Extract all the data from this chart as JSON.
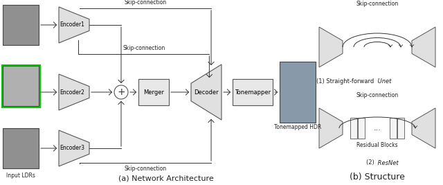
{
  "bg_color": "#ffffff",
  "title_a": "(a) Network Architecture",
  "title_b": "(b) Structure",
  "encoder_labels": [
    "Encoder1",
    "Encoder2",
    "Encoder3"
  ],
  "merger_label": "Merger",
  "decoder_label": "Decoder",
  "tonemapper_label": "Tonemapper",
  "tonemapped_label": "Tonemapped HDR",
  "input_label": "Input LDRs",
  "skip_label": "Skip-connection",
  "unet_prefix": "(1) Straight-forward ",
  "unet_italic": "Unet",
  "resnet_prefix": "(2) ",
  "resnet_italic": "ResNet",
  "skip_conn_label": "Skip-connection",
  "residual_blocks_label": "Residual Blocks",
  "trap_color": "#e0e0e0",
  "box_color": "#e8e8e8",
  "edge_color": "#555555",
  "arrow_color": "#333333",
  "green_border": "#00cc00",
  "img_colors": [
    "#909090",
    "#b0b0b0",
    "#909090"
  ]
}
